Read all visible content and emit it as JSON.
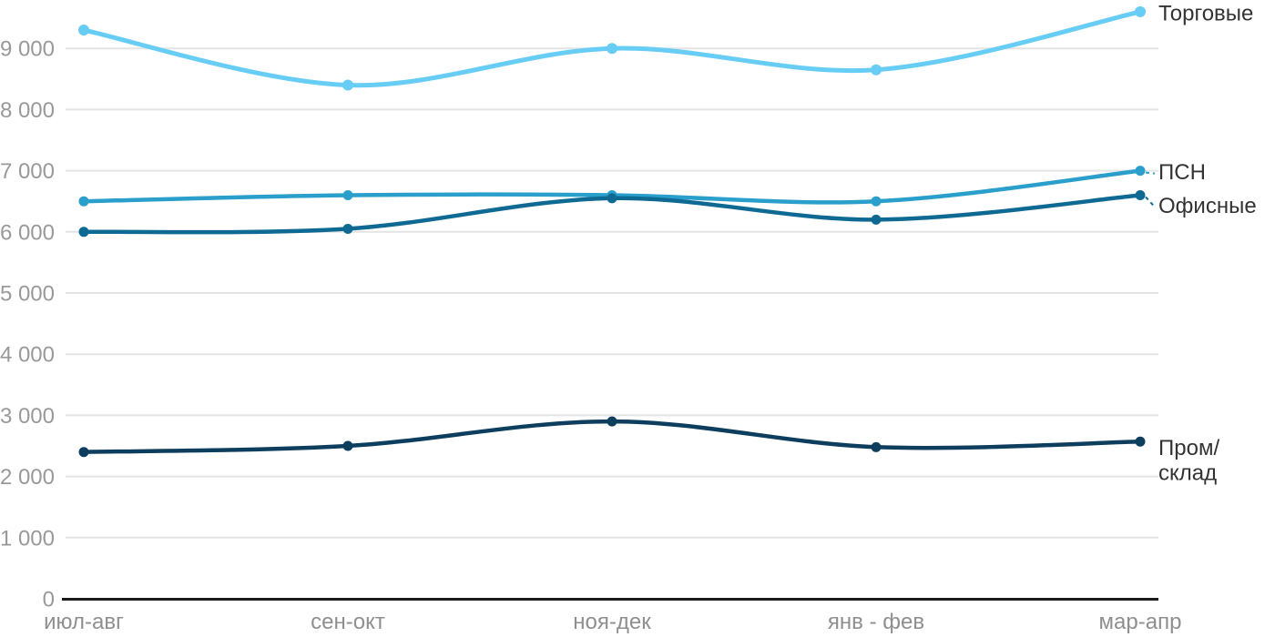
{
  "chart_data": {
    "type": "line",
    "title": "",
    "xlabel": "",
    "ylabel": "",
    "grid": "horizontal",
    "legend_position": "right-of-last-point",
    "ylim": [
      0,
      9800
    ],
    "categories": [
      "июл-авг",
      "сен-окт",
      "ноя-дек",
      "янв - фев",
      "мар-апр"
    ],
    "yticks": [
      0,
      1000,
      2000,
      3000,
      4000,
      5000,
      6000,
      7000,
      8000,
      9000
    ],
    "ytick_labels": [
      "0",
      "1 000",
      "2 000",
      "3 000",
      "4 000",
      "5 000",
      "6 000",
      "7 000",
      "8 000",
      "9 000"
    ],
    "series": [
      {
        "key": "trade",
        "name": "Торговые",
        "color": "#68CDF5",
        "values": [
          9300,
          8400,
          9000,
          8650,
          9600
        ],
        "label_lines": [
          "Торговые"
        ],
        "leader": false,
        "label_dy": 1
      },
      {
        "key": "psn",
        "name": "ПСН",
        "color": "#2B9FCB",
        "values": [
          6500,
          6600,
          6600,
          6500,
          7000
        ],
        "label_lines": [
          "ПСН"
        ],
        "leader": true,
        "label_dy": 1
      },
      {
        "key": "office",
        "name": "Офисные",
        "color": "#0F6A93",
        "values": [
          6000,
          6050,
          6550,
          6200,
          6600
        ],
        "label_lines": [
          "Офисные"
        ],
        "leader": true,
        "label_dy": 11
      },
      {
        "key": "industrial",
        "name": "Пром/склад",
        "color": "#0D3E5E",
        "values": [
          2400,
          2500,
          2900,
          2480,
          2570
        ],
        "label_lines": [
          "Пром/",
          "склад"
        ],
        "leader": false,
        "label_dy": 6
      }
    ],
    "colors": {
      "grid": "#E4E4E4",
      "axis": "#1A1A1A",
      "ytick_text": "#999999",
      "xtick_text": "#8F8F8F",
      "series_label_text": "#333333",
      "background": "#FFFFFF"
    }
  }
}
